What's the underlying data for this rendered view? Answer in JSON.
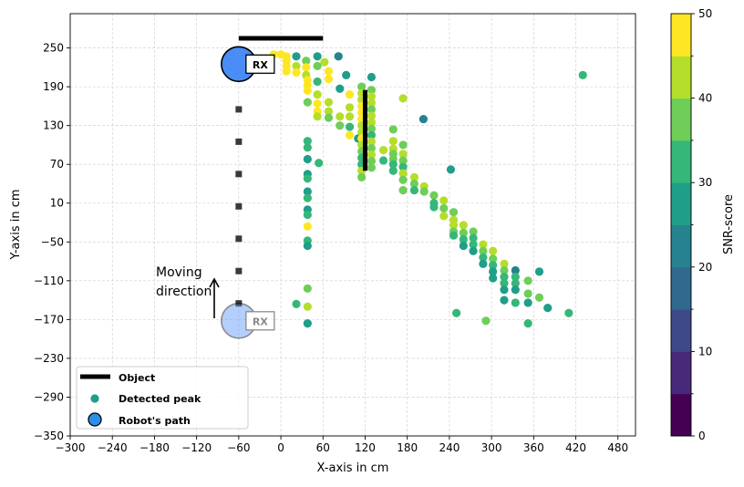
{
  "chart_data": {
    "type": "scatter",
    "title": "",
    "xlabel": "X-axis in cm",
    "ylabel": "Y-axis in cm",
    "xlim": [
      -300,
      505
    ],
    "ylim": [
      -350,
      303
    ],
    "xticks": [
      -300,
      -240,
      -180,
      -120,
      -60,
      0,
      60,
      120,
      180,
      240,
      300,
      360,
      420,
      480
    ],
    "yticks": [
      -350,
      -290,
      -230,
      -170,
      -110,
      -50,
      10,
      70,
      130,
      190,
      250
    ],
    "grid": true,
    "colorbar": {
      "label": "SNR-score",
      "range": [
        0,
        50
      ],
      "ticks": [
        0,
        10,
        20,
        30,
        40,
        50
      ],
      "bins": 10,
      "colors": [
        "#440154",
        "#482878",
        "#3e4989",
        "#31688e",
        "#26828e",
        "#1f9e89",
        "#35b779",
        "#6ece58",
        "#b5de2b",
        "#fde725"
      ]
    },
    "object_segments": [
      {
        "x": [
          -60,
          60
        ],
        "y": [
          265,
          265
        ]
      },
      {
        "x": [
          120,
          120
        ],
        "y": [
          185,
          60
        ]
      }
    ],
    "robot_path": {
      "x": -60,
      "y": [
        155,
        105,
        55,
        5,
        -45,
        -95,
        -145
      ]
    },
    "robot_start": {
      "x": -60,
      "y": 225,
      "label": "RX"
    },
    "robot_end": {
      "x": -60,
      "y": -172,
      "label": "RX"
    },
    "annotation": {
      "text_line1": "Moving",
      "text_line2": "direction"
    },
    "legend": {
      "location": "lower-left",
      "entries": [
        "Object",
        "Detected peak",
        "Robot's path"
      ]
    },
    "peaks": [
      [
        -10,
        240,
        50
      ],
      [
        0,
        240,
        48
      ],
      [
        8,
        237,
        50
      ],
      [
        8,
        230,
        47
      ],
      [
        8,
        222,
        45
      ],
      [
        8,
        214,
        50
      ],
      [
        22,
        237,
        28
      ],
      [
        22,
        222,
        43
      ],
      [
        22,
        212,
        50
      ],
      [
        36,
        230,
        38
      ],
      [
        36,
        220,
        50
      ],
      [
        36,
        208,
        42
      ],
      [
        52,
        237,
        26
      ],
      [
        52,
        222,
        35
      ],
      [
        52,
        198,
        30
      ],
      [
        62,
        228,
        44
      ],
      [
        68,
        214,
        48
      ],
      [
        68,
        202,
        50
      ],
      [
        82,
        237,
        30
      ],
      [
        82,
        237,
        24
      ],
      [
        84,
        187,
        28
      ],
      [
        93,
        208,
        26
      ],
      [
        38,
        200,
        50
      ],
      [
        38,
        192,
        48
      ],
      [
        38,
        184,
        45
      ],
      [
        38,
        166,
        38
      ],
      [
        52,
        178,
        42
      ],
      [
        52,
        164,
        45
      ],
      [
        52,
        152,
        48
      ],
      [
        52,
        144,
        42
      ],
      [
        68,
        166,
        44
      ],
      [
        68,
        152,
        40
      ],
      [
        68,
        142,
        36
      ],
      [
        84,
        144,
        42
      ],
      [
        84,
        130,
        38
      ],
      [
        98,
        178,
        46
      ],
      [
        98,
        158,
        42
      ],
      [
        98,
        144,
        40
      ],
      [
        98,
        128,
        32
      ],
      [
        98,
        115,
        50
      ],
      [
        110,
        110,
        28
      ],
      [
        115,
        190,
        38
      ],
      [
        115,
        180,
        40
      ],
      [
        115,
        170,
        42
      ],
      [
        115,
        160,
        45
      ],
      [
        115,
        150,
        50
      ],
      [
        115,
        140,
        47
      ],
      [
        115,
        130,
        44
      ],
      [
        115,
        120,
        42
      ],
      [
        115,
        110,
        46
      ],
      [
        115,
        100,
        40
      ],
      [
        115,
        90,
        36
      ],
      [
        115,
        80,
        34
      ],
      [
        115,
        70,
        32
      ],
      [
        115,
        60,
        42
      ],
      [
        115,
        50,
        35
      ],
      [
        129,
        185,
        38
      ],
      [
        129,
        175,
        42
      ],
      [
        129,
        165,
        40
      ],
      [
        129,
        155,
        36
      ],
      [
        129,
        145,
        42
      ],
      [
        129,
        135,
        44
      ],
      [
        129,
        125,
        38
      ],
      [
        129,
        115,
        34
      ],
      [
        129,
        105,
        40
      ],
      [
        129,
        95,
        36
      ],
      [
        129,
        85,
        42
      ],
      [
        129,
        75,
        38
      ],
      [
        129,
        65,
        36
      ],
      [
        129,
        205,
        26
      ],
      [
        146,
        92,
        40
      ],
      [
        146,
        76,
        34
      ],
      [
        160,
        124,
        36
      ],
      [
        160,
        106,
        40
      ],
      [
        160,
        94,
        42
      ],
      [
        160,
        86,
        38
      ],
      [
        160,
        78,
        36
      ],
      [
        160,
        70,
        34
      ],
      [
        160,
        60,
        30
      ],
      [
        174,
        172,
        40
      ],
      [
        174,
        100,
        36
      ],
      [
        174,
        86,
        40
      ],
      [
        174,
        76,
        38
      ],
      [
        174,
        66,
        34
      ],
      [
        174,
        56,
        42
      ],
      [
        174,
        46,
        36
      ],
      [
        174,
        30,
        38
      ],
      [
        190,
        50,
        40
      ],
      [
        190,
        40,
        36
      ],
      [
        190,
        30,
        34
      ],
      [
        203,
        140,
        24
      ],
      [
        204,
        36,
        40
      ],
      [
        204,
        28,
        38
      ],
      [
        218,
        22,
        36
      ],
      [
        218,
        10,
        34
      ],
      [
        218,
        4,
        30
      ],
      [
        232,
        14,
        40
      ],
      [
        232,
        2,
        38
      ],
      [
        232,
        -10,
        42
      ],
      [
        242,
        62,
        28
      ],
      [
        246,
        -4,
        36
      ],
      [
        246,
        -16,
        44
      ],
      [
        246,
        -24,
        40
      ],
      [
        246,
        -34,
        36
      ],
      [
        246,
        -40,
        34
      ],
      [
        260,
        -24,
        40
      ],
      [
        260,
        -36,
        36
      ],
      [
        260,
        -46,
        30
      ],
      [
        260,
        -56,
        26
      ],
      [
        274,
        -34,
        38
      ],
      [
        274,
        -44,
        34
      ],
      [
        274,
        -54,
        30
      ],
      [
        274,
        -64,
        28
      ],
      [
        288,
        -54,
        40
      ],
      [
        288,
        -64,
        36
      ],
      [
        288,
        -74,
        32
      ],
      [
        288,
        -84,
        28
      ],
      [
        302,
        -64,
        40
      ],
      [
        302,
        -76,
        36
      ],
      [
        302,
        -86,
        32
      ],
      [
        302,
        -96,
        28
      ],
      [
        302,
        -106,
        26
      ],
      [
        318,
        -84,
        40
      ],
      [
        318,
        -94,
        36
      ],
      [
        318,
        -104,
        34
      ],
      [
        318,
        -114,
        30
      ],
      [
        318,
        -124,
        26
      ],
      [
        318,
        -140,
        28
      ],
      [
        334,
        -94,
        20
      ],
      [
        334,
        -104,
        34
      ],
      [
        334,
        -114,
        30
      ],
      [
        334,
        -124,
        26
      ],
      [
        334,
        -144,
        30
      ],
      [
        352,
        -110,
        38
      ],
      [
        352,
        -130,
        36
      ],
      [
        352,
        -144,
        28
      ],
      [
        368,
        -96,
        26
      ],
      [
        368,
        -136,
        36
      ],
      [
        380,
        -152,
        26
      ],
      [
        410,
        -160,
        30
      ],
      [
        430,
        208,
        34
      ],
      [
        250,
        -160,
        30
      ],
      [
        292,
        -172,
        36
      ],
      [
        352,
        -176,
        30
      ],
      [
        38,
        106,
        32
      ],
      [
        38,
        96,
        30
      ],
      [
        38,
        78,
        28
      ],
      [
        38,
        55,
        26
      ],
      [
        38,
        48,
        30
      ],
      [
        38,
        28,
        28
      ],
      [
        38,
        18,
        30
      ],
      [
        38,
        0,
        26
      ],
      [
        38,
        -8,
        34
      ],
      [
        38,
        -26,
        46
      ],
      [
        38,
        -48,
        30
      ],
      [
        38,
        -56,
        26
      ],
      [
        54,
        72,
        34
      ],
      [
        38,
        -122,
        36
      ],
      [
        38,
        -150,
        40
      ],
      [
        22,
        -146,
        34
      ],
      [
        38,
        -176,
        26
      ]
    ]
  }
}
